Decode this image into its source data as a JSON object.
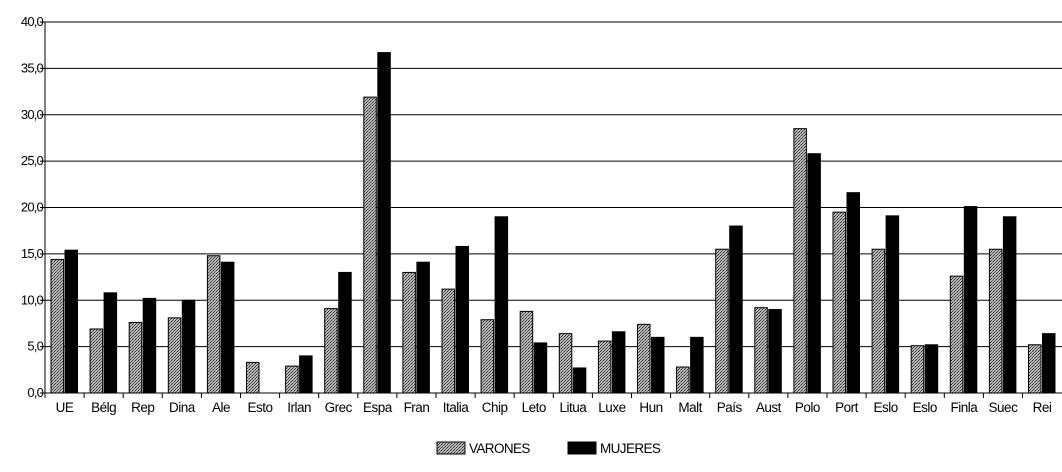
{
  "chart_data": {
    "type": "bar",
    "categories": [
      "UE",
      "Bélg",
      "Rep",
      "Dina",
      "Ale",
      "Esto",
      "Irlan",
      "Grec",
      "Espa",
      "Fran",
      "Italia",
      "Chip",
      "Leto",
      "Litua",
      "Luxe",
      "Hun",
      "Malt",
      "País",
      "Aust",
      "Polo",
      "Port",
      "Eslo",
      "Eslo",
      "Finla",
      "Suec",
      "Rei"
    ],
    "series": [
      {
        "name": "VARONES",
        "color": "#8c8c8c",
        "pattern": "checkered",
        "values": [
          14.4,
          6.9,
          7.6,
          8.1,
          14.8,
          3.3,
          2.9,
          9.1,
          31.9,
          13.0,
          11.2,
          7.9,
          8.8,
          6.4,
          5.6,
          7.4,
          2.8,
          15.5,
          9.2,
          28.5,
          19.5,
          15.5,
          5.1,
          12.6,
          15.5,
          5.2
        ]
      },
      {
        "name": "MUJERES",
        "color": "#000000",
        "pattern": "solid",
        "values": [
          15.4,
          10.8,
          10.2,
          10.0,
          14.1,
          null,
          4.0,
          13.0,
          36.7,
          14.1,
          15.8,
          19.0,
          5.4,
          2.7,
          6.6,
          6.0,
          6.0,
          18.0,
          9.0,
          25.8,
          21.6,
          19.1,
          5.2,
          20.1,
          19.0,
          6.4
        ]
      }
    ],
    "y_ticks": [
      "0,0",
      "5,0",
      "10,0",
      "15,0",
      "20,0",
      "25,0",
      "30,0",
      "35,0",
      "40,0"
    ],
    "ylim": [
      0,
      40
    ],
    "grid": "horizontal",
    "legend": {
      "position": "bottom-center",
      "items": [
        "VARONES",
        "MUJERES"
      ]
    }
  }
}
